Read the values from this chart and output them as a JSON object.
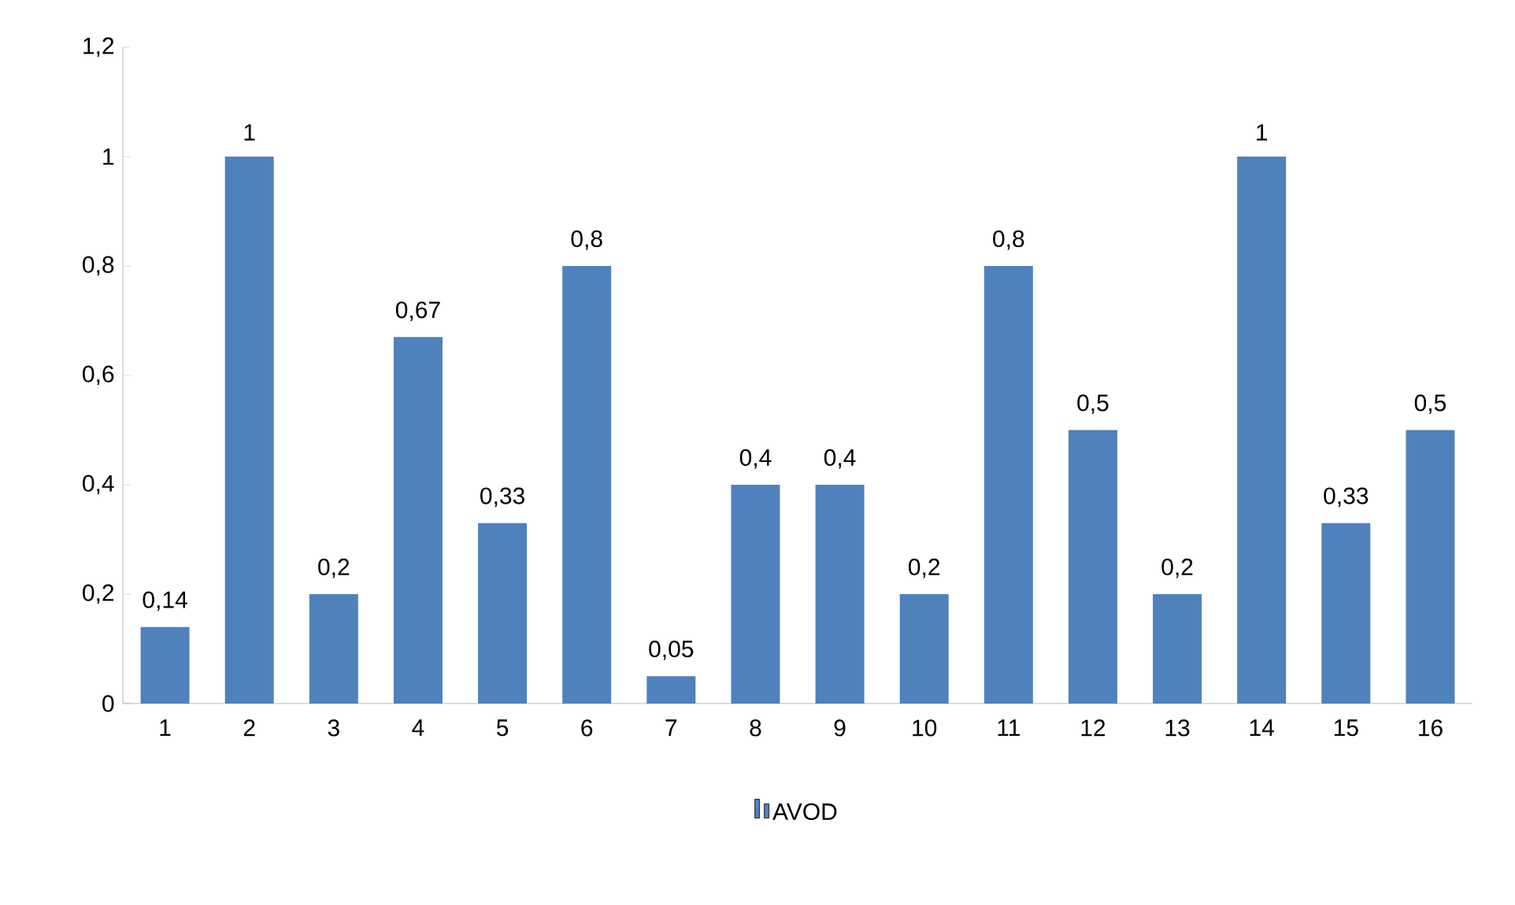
{
  "chart_data": {
    "type": "bar",
    "categories": [
      "1",
      "2",
      "3",
      "4",
      "5",
      "6",
      "7",
      "8",
      "9",
      "10",
      "11",
      "12",
      "13",
      "14",
      "15",
      "16"
    ],
    "series": [
      {
        "name": "AVOD",
        "color": "#4f81bd",
        "values": [
          0.14,
          1,
          0.2,
          0.67,
          0.33,
          0.8,
          0.05,
          0.4,
          0.4,
          0.2,
          0.8,
          0.5,
          0.2,
          1,
          0.33,
          0.5
        ],
        "value_labels": [
          "0,14",
          "1",
          "0,2",
          "0,67",
          "0,33",
          "0,8",
          "0,05",
          "0,4",
          "0,4",
          "0,2",
          "0,8",
          "0,5",
          "0,2",
          "1",
          "0,33",
          "0,5"
        ]
      }
    ],
    "ylim": [
      0,
      1.2
    ],
    "yticks": [
      0,
      {
        "value": 0.2,
        "label": "0,2"
      },
      {
        "value": 0.4,
        "label": "0,4"
      },
      {
        "value": 0.6,
        "label": "0,6"
      },
      {
        "value": 0.8,
        "label": "0,8"
      },
      1,
      {
        "value": 1.2,
        "label": "1,2"
      }
    ],
    "grid": false,
    "legend": "bottom"
  }
}
